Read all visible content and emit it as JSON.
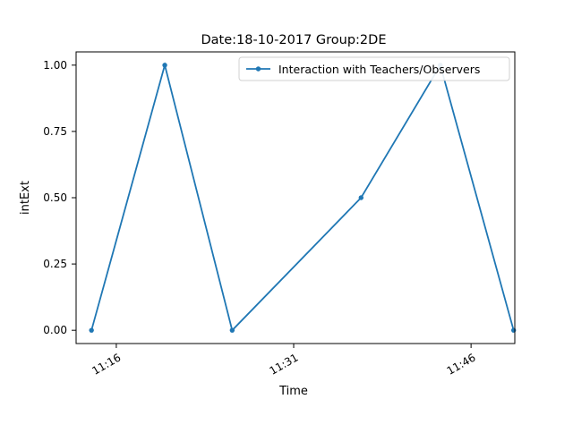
{
  "chart_data": {
    "type": "line",
    "title": "Date:18-10-2017  Group:2DE",
    "xlabel": "Time",
    "ylabel": "intExt",
    "x_tick_labels": [
      "11:16",
      "11:31",
      "11:46"
    ],
    "x_tick_values_minutes": [
      676,
      691,
      706
    ],
    "y_tick_labels": [
      "0.00",
      "0.25",
      "0.50",
      "0.75",
      "1.00"
    ],
    "y_tick_values": [
      0.0,
      0.25,
      0.5,
      0.75,
      1.0
    ],
    "xlim_minutes": [
      672.6,
      709.7
    ],
    "ylim": [
      -0.05,
      1.05
    ],
    "series": [
      {
        "name": "Interaction with Teachers/Observers",
        "color": "#1f77b4",
        "marker": "point",
        "x": [
          "11:13.9",
          "11:20.1",
          "11:25.8",
          "11:36.7",
          "11:43.4",
          "11:49.6"
        ],
        "x_minutes": [
          673.9,
          680.1,
          685.8,
          696.7,
          703.4,
          709.6
        ],
        "y": [
          0.0,
          1.0,
          0.0,
          0.5,
          1.0,
          0.0
        ]
      }
    ],
    "legend": {
      "location": "upper right"
    },
    "grid": false
  }
}
